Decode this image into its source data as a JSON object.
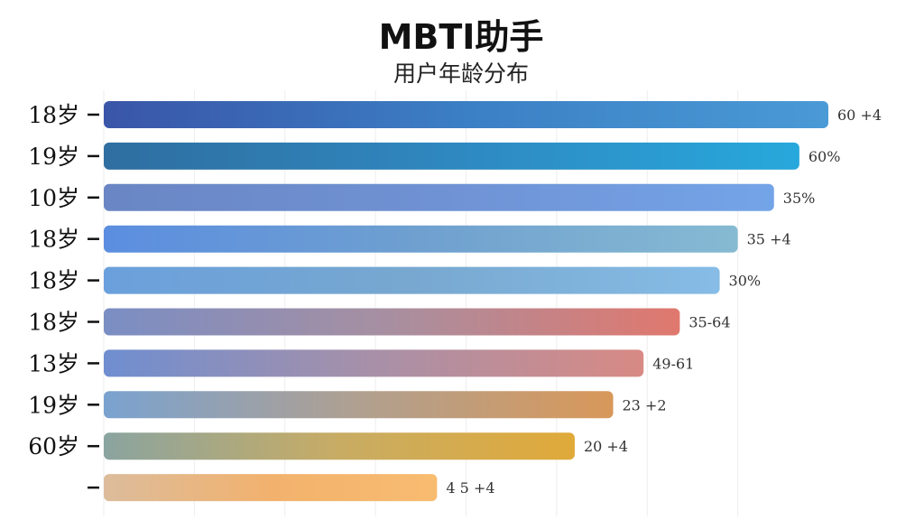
{
  "chart_data": {
    "type": "bar",
    "orientation": "horizontal",
    "title": "MBTI助手",
    "subtitle": "用户年龄分布",
    "categories": [
      "18岁",
      "19岁",
      "10岁",
      "18岁",
      "18岁",
      "18岁",
      "13岁",
      "19岁",
      "60岁",
      ""
    ],
    "values": [
      100,
      96,
      92.5,
      87.5,
      85,
      79.5,
      74.5,
      70.3,
      65,
      46
    ],
    "value_labels": [
      "60 +4",
      "60%",
      "35%",
      "35 +4",
      "30%",
      "35-64",
      "49-61",
      "23 +2",
      "20 +4",
      "4 5 +4"
    ],
    "xlim": [
      0,
      100
    ],
    "grid": true,
    "legend": "none",
    "bar_gradients": [
      [
        "#3a55a8",
        "#3b7fc4",
        "#4a9ad6"
      ],
      [
        "#2f6ea0",
        "#2f88c0",
        "#27a8dc"
      ],
      [
        "#6a86c4",
        "#6f92d4",
        "#74a4e8"
      ],
      [
        "#5b8ee0",
        "#6fa0d0",
        "#86bad2"
      ],
      [
        "#6aa0dc",
        "#78a8d0",
        "#86bce6"
      ],
      [
        "#7a8ec4",
        "#a88fa0",
        "#e0786e"
      ],
      [
        "#6f8ed0",
        "#a890a8",
        "#d88a84"
      ],
      [
        "#7aa2d0",
        "#b0a090",
        "#d8985a"
      ],
      [
        "#8aa4a0",
        "#c8ac64",
        "#e0aa3a"
      ],
      [
        "#dcbc9c",
        "#f2b26e",
        "#f8bc70"
      ]
    ]
  }
}
